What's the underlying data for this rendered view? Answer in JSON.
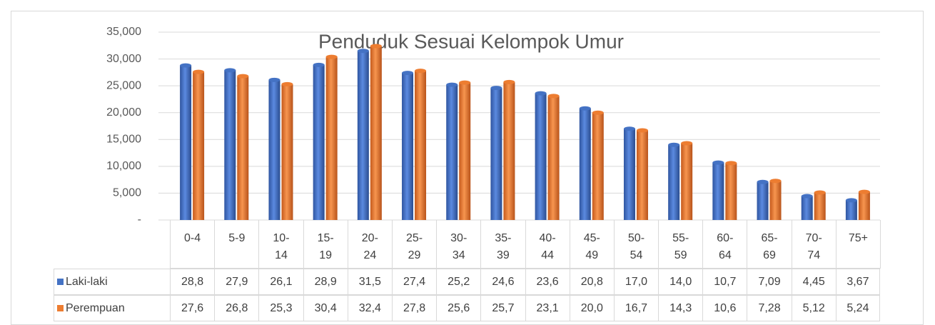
{
  "chart_data": {
    "type": "bar",
    "title": "Penduduk Sesuai Kelompok Umur",
    "categories": [
      "0-4",
      "5-9",
      "10-14",
      "15-19",
      "20-24",
      "25-29",
      "30-34",
      "35-39",
      "40-44",
      "45-49",
      "50-54",
      "55-59",
      "60-64",
      "65-69",
      "70-74",
      "75+"
    ],
    "series": [
      {
        "name": "Laki-laki",
        "color": "#4472c4",
        "values": [
          28800,
          27900,
          26100,
          28900,
          31500,
          27400,
          25200,
          24600,
          23600,
          20800,
          17000,
          14000,
          10700,
          7090,
          4450,
          3670
        ],
        "value_labels": [
          "28,8",
          "27,9",
          "26,1",
          "28,9",
          "31,5",
          "27,4",
          "25,2",
          "24,6",
          "23,6",
          "20,8",
          "17,0",
          "14,0",
          "10,7",
          "7,09",
          "4,45",
          "3,67"
        ]
      },
      {
        "name": "Perempuan",
        "color": "#ed7d31",
        "values": [
          27600,
          26800,
          25300,
          30400,
          32400,
          27800,
          25600,
          25700,
          23100,
          20000,
          16700,
          14300,
          10600,
          7280,
          5120,
          5240
        ],
        "value_labels": [
          "27,6",
          "26,8",
          "25,3",
          "30,4",
          "32,4",
          "27,8",
          "25,6",
          "25,7",
          "23,1",
          "20,0",
          "16,7",
          "14,3",
          "10,6",
          "7,28",
          "5,12",
          "5,24"
        ]
      }
    ],
    "ylim": [
      0,
      35000
    ],
    "yticks": [
      {
        "value": 0,
        "label": "-"
      },
      {
        "value": 5000,
        "label": "5,000"
      },
      {
        "value": 10000,
        "label": "10,000"
      },
      {
        "value": 15000,
        "label": "15,000"
      },
      {
        "value": 20000,
        "label": "20,000"
      },
      {
        "value": 25000,
        "label": "25,000"
      },
      {
        "value": 30000,
        "label": "30,000"
      },
      {
        "value": 35000,
        "label": "35,000"
      }
    ],
    "grid": true,
    "data_table": true
  }
}
